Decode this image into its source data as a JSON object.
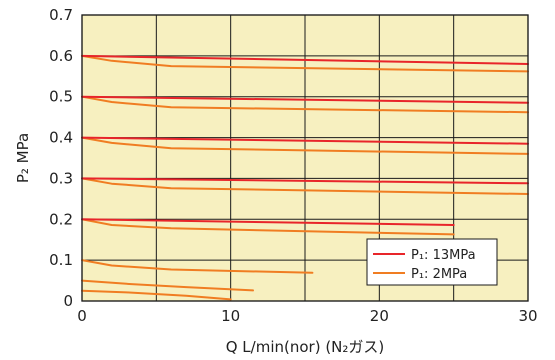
{
  "chart_data": {
    "type": "line",
    "title": "",
    "xlabel": "Q L/min(nor) (N₂ガス)",
    "ylabel": "P₂ MPa",
    "xlim": [
      0,
      30
    ],
    "ylim": [
      0,
      0.7
    ],
    "xticks": [
      "0",
      "10",
      "20",
      "30"
    ],
    "yticks": [
      "0",
      "0.1",
      "0.2",
      "0.3",
      "0.4",
      "0.5",
      "0.6",
      "0.7"
    ],
    "grid": true,
    "plot_background": "#f7f0c0",
    "legend_position": "bottom-right",
    "series": [
      {
        "name": "P₁: 13MPa",
        "color": "#e8252a",
        "lines": [
          {
            "x": [
              0,
              30
            ],
            "y": [
              0.6,
              0.58
            ]
          },
          {
            "x": [
              0,
              30
            ],
            "y": [
              0.5,
              0.485
            ]
          },
          {
            "x": [
              0,
              30
            ],
            "y": [
              0.4,
              0.385
            ]
          },
          {
            "x": [
              0,
              30
            ],
            "y": [
              0.3,
              0.288
            ]
          },
          {
            "x": [
              0,
              25
            ],
            "y": [
              0.2,
              0.186
            ]
          }
        ]
      },
      {
        "name": "P₁: 2MPa",
        "color": "#f07d22",
        "lines": [
          {
            "x": [
              0,
              2,
              6,
              30
            ],
            "y": [
              0.6,
              0.588,
              0.575,
              0.562
            ]
          },
          {
            "x": [
              0,
              2,
              6,
              30
            ],
            "y": [
              0.5,
              0.487,
              0.474,
              0.462
            ]
          },
          {
            "x": [
              0,
              2,
              6,
              30
            ],
            "y": [
              0.4,
              0.387,
              0.374,
              0.36
            ]
          },
          {
            "x": [
              0,
              2,
              6,
              30
            ],
            "y": [
              0.3,
              0.287,
              0.276,
              0.262
            ]
          },
          {
            "x": [
              0,
              2,
              6,
              25
            ],
            "y": [
              0.2,
              0.186,
              0.178,
              0.163
            ]
          },
          {
            "x": [
              0,
              2,
              6,
              15.5
            ],
            "y": [
              0.1,
              0.087,
              0.077,
              0.069
            ]
          },
          {
            "x": [
              0,
              3,
              7,
              11.5
            ],
            "y": [
              0.05,
              0.042,
              0.034,
              0.026
            ]
          },
          {
            "x": [
              0,
              3,
              7,
              10
            ],
            "y": [
              0.025,
              0.021,
              0.013,
              0.004
            ]
          }
        ]
      }
    ]
  }
}
